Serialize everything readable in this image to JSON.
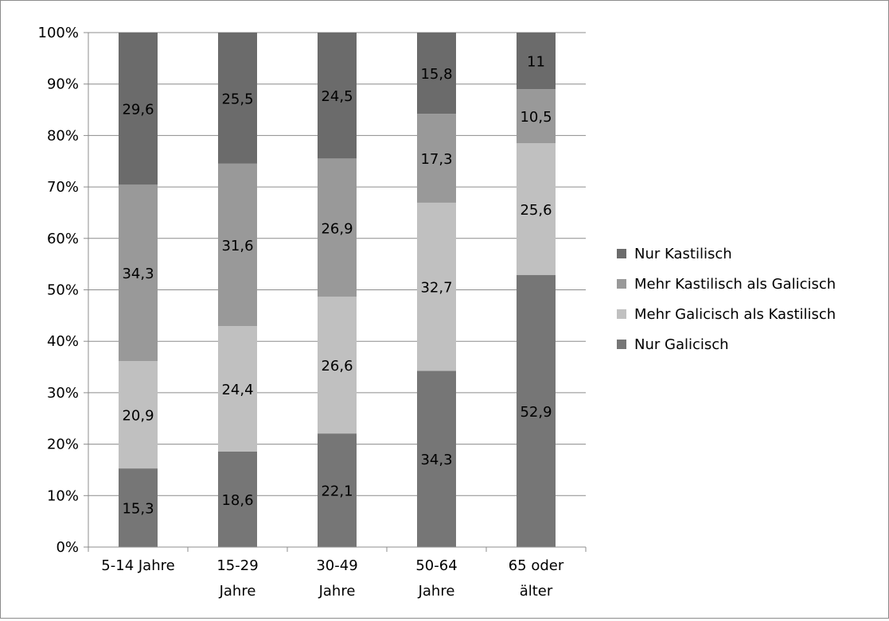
{
  "chart_data": {
    "type": "bar",
    "stacked": true,
    "percent_stacked": true,
    "categories": [
      [
        "5-14 Jahre"
      ],
      [
        "15-29",
        "Jahre"
      ],
      [
        "30-49",
        "Jahre"
      ],
      [
        "50-64",
        "Jahre"
      ],
      [
        "65 oder",
        "älter"
      ]
    ],
    "series": [
      {
        "name": "Nur Galicisch",
        "color": "#767676",
        "values": [
          15.3,
          18.6,
          22.1,
          34.3,
          52.9
        ],
        "labels": [
          "15,3",
          "18,6",
          "22,1",
          "34,3",
          "52,9"
        ]
      },
      {
        "name": "Mehr Galicisch als Kastilisch",
        "color": "#c0c0c0",
        "values": [
          20.9,
          24.4,
          26.6,
          32.7,
          25.6
        ],
        "labels": [
          "20,9",
          "24,4",
          "26,6",
          "32,7",
          "25,6"
        ]
      },
      {
        "name": "Mehr Kastilisch als Galicisch",
        "color": "#999999",
        "values": [
          34.3,
          31.6,
          26.9,
          17.3,
          10.5
        ],
        "labels": [
          "34,3",
          "31,6",
          "26,9",
          "17,3",
          "10,5"
        ]
      },
      {
        "name": "Nur Kastilisch",
        "color": "#6b6b6b",
        "values": [
          29.6,
          25.5,
          24.5,
          15.8,
          11.0
        ],
        "labels": [
          "29,6",
          "25,5",
          "24,5",
          "15,8",
          "11"
        ]
      }
    ],
    "ylim": [
      0,
      100
    ],
    "yticks": [
      "0%",
      "10%",
      "20%",
      "30%",
      "40%",
      "50%",
      "60%",
      "70%",
      "80%",
      "90%",
      "100%"
    ],
    "grid": true,
    "legend_position": "right",
    "legend_order": [
      "Nur Kastilisch",
      "Mehr Kastilisch als Galicisch",
      "Mehr Galicisch als Kastilisch",
      "Nur Galicisch"
    ],
    "title": "",
    "xlabel": "",
    "ylabel": ""
  }
}
